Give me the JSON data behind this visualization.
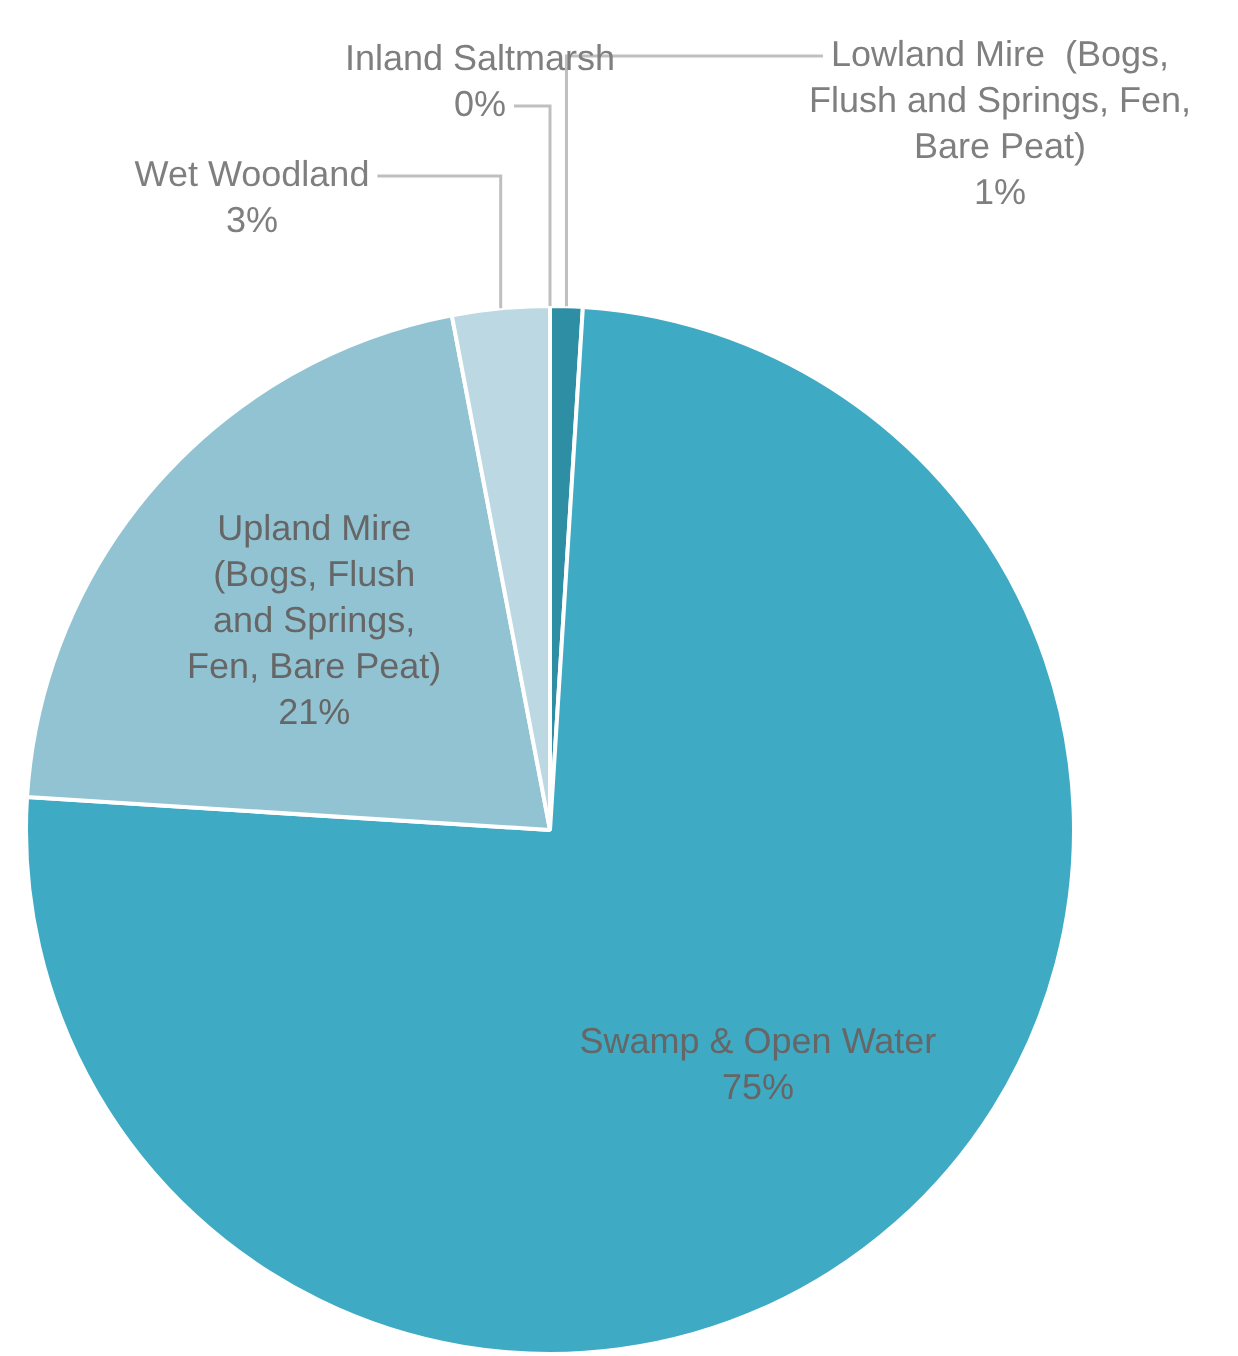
{
  "chart_data": {
    "type": "pie",
    "categories": [
      "Lowland Mire  (Bogs, Flush and Springs, Fen, Bare Peat)",
      "Swamp & Open Water",
      "Upland Mire (Bogs, Flush and Springs, Fen, Bare Peat)",
      "Wet Woodland",
      "Inland Saltmarsh"
    ],
    "values": [
      1,
      75,
      21,
      3,
      0
    ],
    "value_labels": [
      "1%",
      "75%",
      "21%",
      "3%",
      "0%"
    ],
    "colors": [
      "#2e8ea3",
      "#3faac4",
      "#92c3d3",
      "#bcd8e3",
      "#d6e8ef"
    ],
    "legend": false
  }
}
